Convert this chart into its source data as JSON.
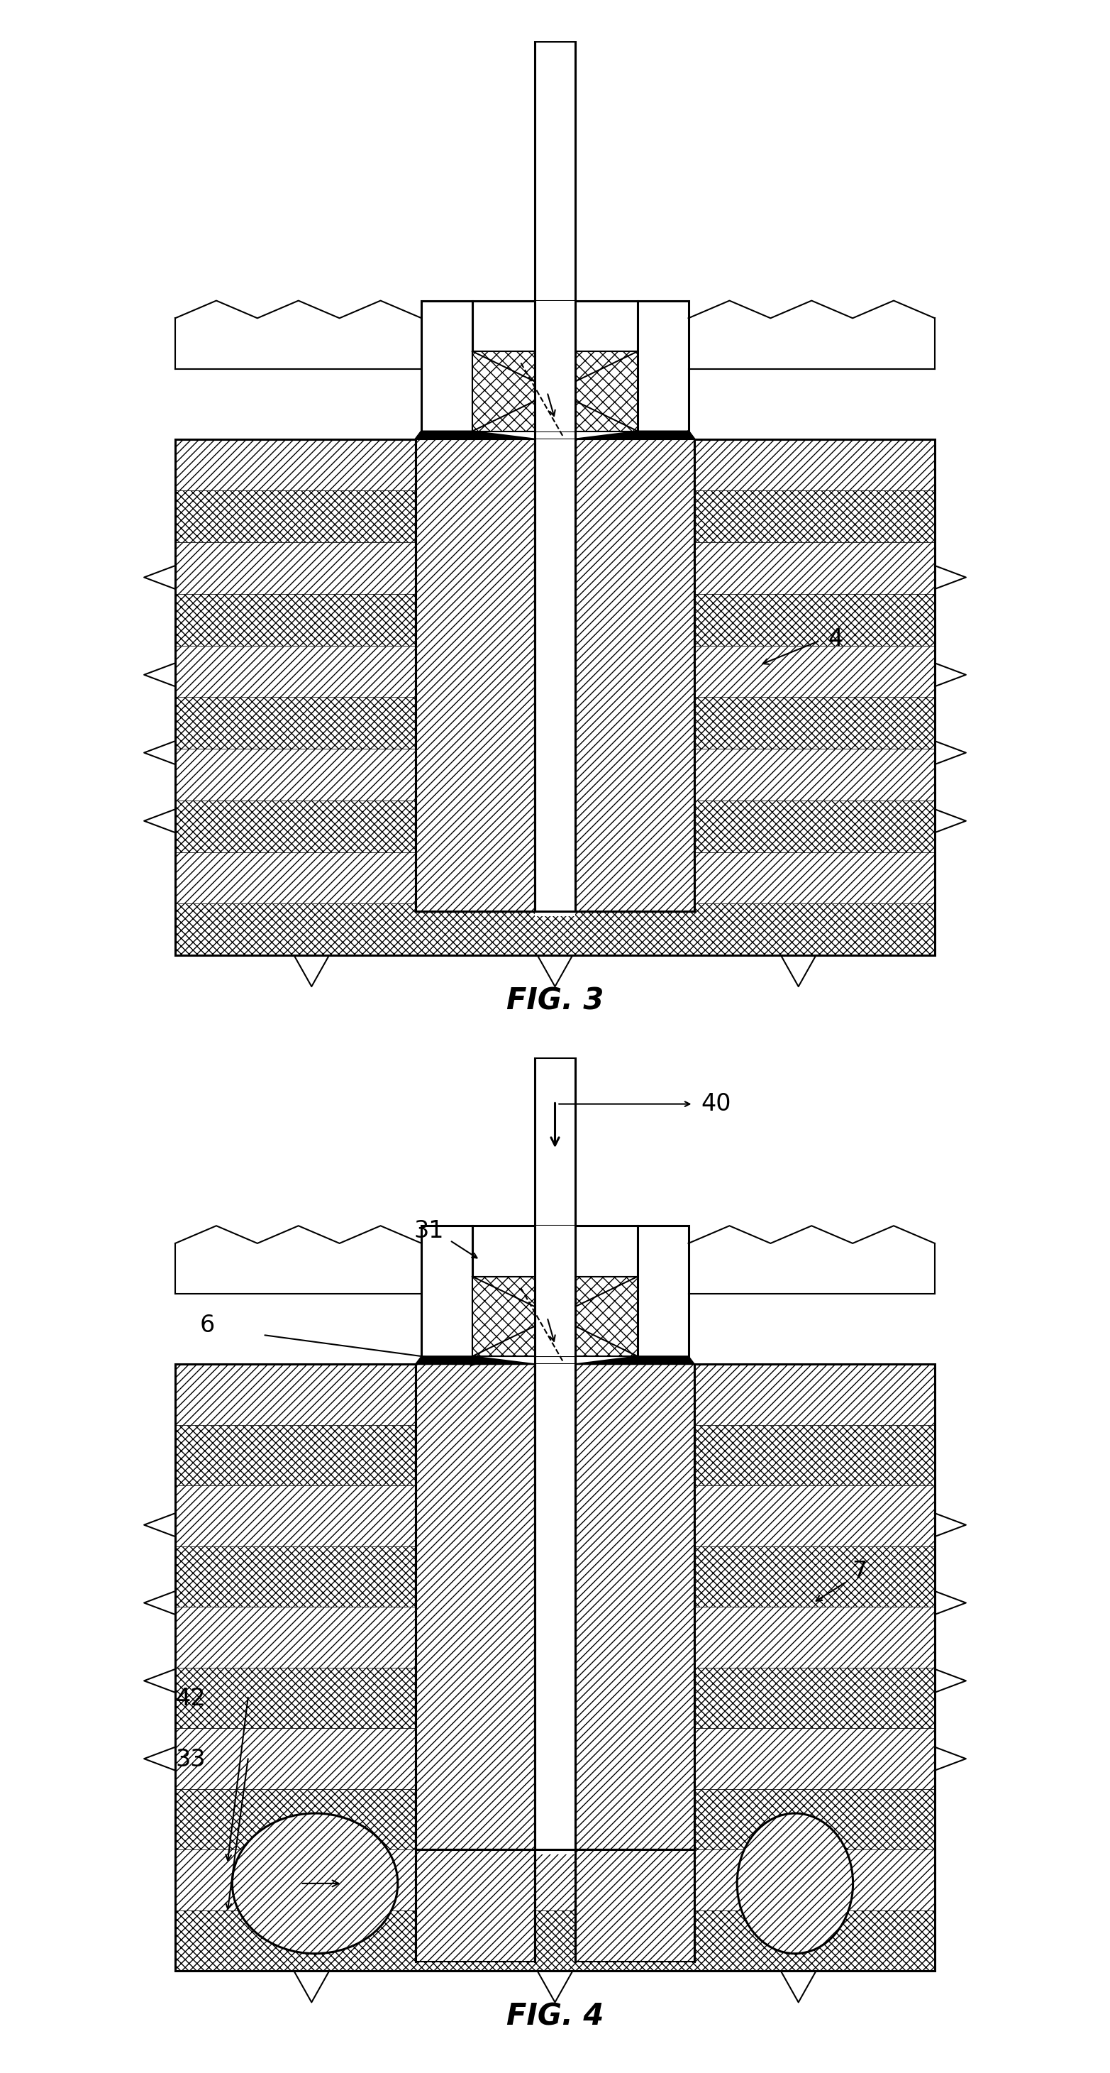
{
  "fig_width": 15.65,
  "fig_height": 29.21,
  "bg_color": "#ffffff",
  "line_color": "#000000",
  "fig3_label": "FIG. 3",
  "fig4_label": "FIG. 4",
  "label_4": "4",
  "label_6": "6",
  "label_7": "7",
  "label_31": "31",
  "label_33": "33",
  "label_40": "40",
  "label_42": "42"
}
